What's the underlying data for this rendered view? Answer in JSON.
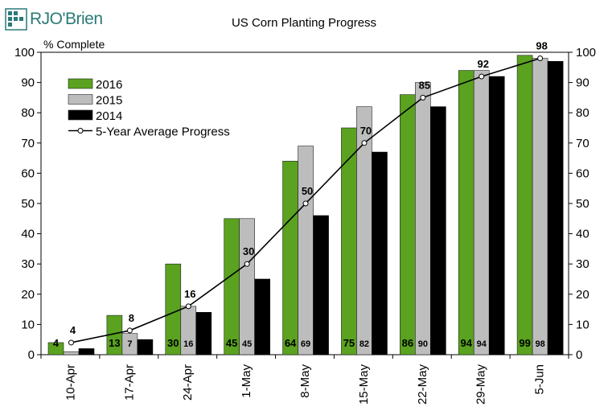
{
  "brand": {
    "name": "RJO'Brien"
  },
  "colors": {
    "2016": "#5aa21f",
    "2015": "#bdbdbd",
    "2014": "#000000",
    "avg_line": "#000000",
    "logo": "#2a7a78"
  },
  "chart_data": {
    "type": "bar",
    "title": "US Corn Planting Progress",
    "ylabel": "% Complete",
    "xlabel": "",
    "ylim": [
      0,
      100
    ],
    "yticks": [
      0,
      10,
      20,
      30,
      40,
      50,
      60,
      70,
      80,
      90,
      100
    ],
    "secondary_y_axis": true,
    "grid": false,
    "legend_position": "top-left",
    "categories": [
      "10-Apr",
      "17-Apr",
      "24-Apr",
      "1-May",
      "8-May",
      "15-May",
      "22-May",
      "29-May",
      "5-Jun"
    ],
    "series": [
      {
        "name": "2016",
        "type": "bar",
        "values": [
          4,
          13,
          30,
          45,
          64,
          75,
          86,
          94,
          99
        ],
        "data_labels": [
          "4",
          "13",
          "30",
          "45",
          "64",
          "75",
          "86",
          "94",
          "99"
        ]
      },
      {
        "name": "2015",
        "type": "bar",
        "values": [
          1,
          7,
          16,
          45,
          69,
          82,
          90,
          94,
          98
        ],
        "data_labels": [
          "",
          "7",
          "16",
          "45",
          "69",
          "82",
          "90",
          "94",
          "98"
        ]
      },
      {
        "name": "2014",
        "type": "bar",
        "values": [
          2,
          5,
          14,
          25,
          46,
          67,
          82,
          92,
          97
        ]
      },
      {
        "name": "5-Year Average Progress",
        "type": "line",
        "values": [
          4,
          8,
          16,
          30,
          50,
          70,
          85,
          92,
          98
        ],
        "data_labels": [
          "4",
          "8",
          "16",
          "30",
          "50",
          "70",
          "85",
          "92",
          "98"
        ]
      }
    ]
  }
}
